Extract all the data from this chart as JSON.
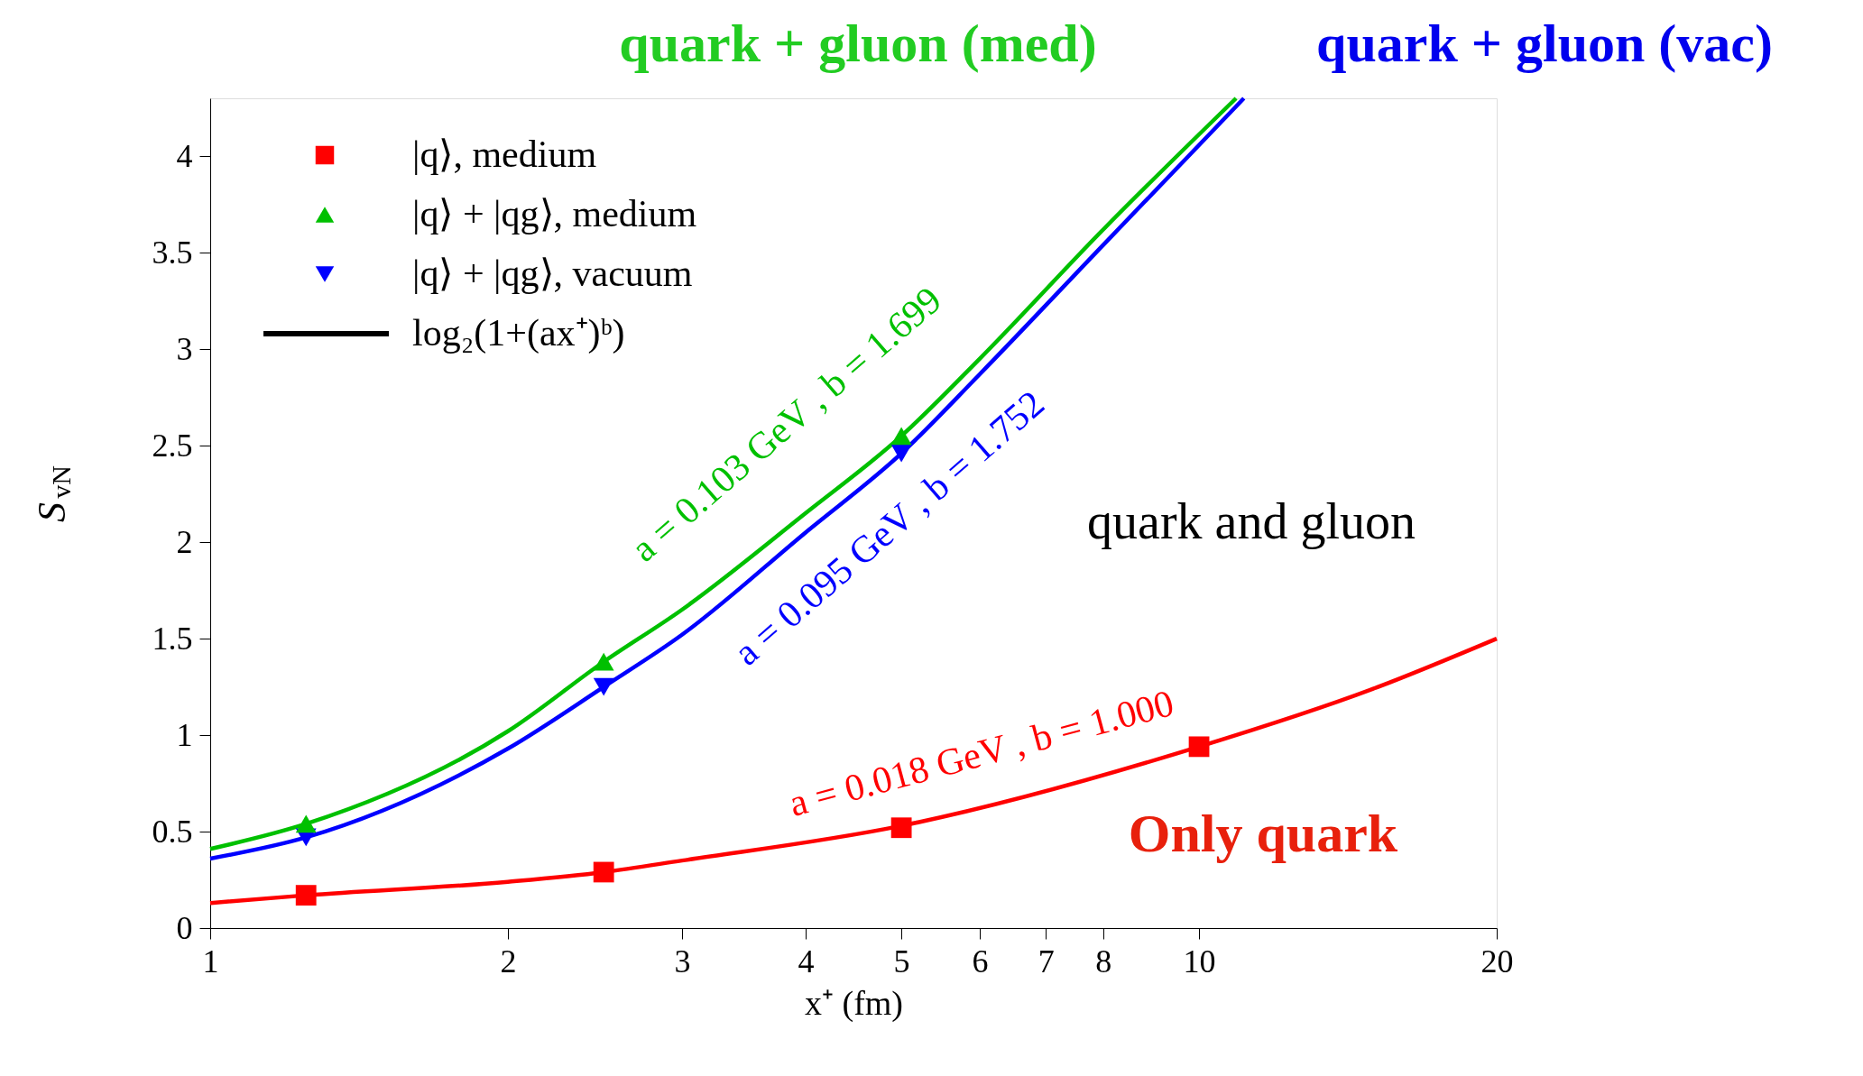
{
  "chart_data": {
    "type": "scatter",
    "xlabel": "x⁺ (fm)",
    "ylabel": "S$_{vN}$",
    "log": "x",
    "xlim": [
      1,
      20
    ],
    "xticks": [
      1,
      2,
      3,
      4,
      5,
      6,
      7,
      8,
      10,
      20
    ],
    "ylim": [
      0,
      4.3
    ],
    "yticks": [
      0,
      0.5,
      1,
      1.5,
      2,
      2.5,
      3,
      3.5,
      4
    ],
    "grid": false,
    "legend": "top left",
    "series": [
      {
        "name": "|q⟩, medium",
        "marker": "square",
        "color": "#ff0000",
        "x": [
          1.25,
          2.5,
          5,
          10
        ],
        "values": [
          0.17,
          0.29,
          0.52,
          0.94
        ]
      },
      {
        "name": "|q⟩ + |qg⟩, medium",
        "marker": "triangle",
        "color": "#00c000",
        "x": [
          1.25,
          2.5,
          5
        ],
        "values": [
          0.54,
          1.38,
          2.55
        ]
      },
      {
        "name": "|q⟩ + |qg⟩, vacuum",
        "marker": "triangle-down",
        "color": "#0000ff",
        "x": [
          1.25,
          2.5,
          5
        ],
        "values": [
          0.47,
          1.25,
          2.46
        ]
      },
      {
        "name": "log₂(1+(ax⁺)ᵇ)",
        "type": "line",
        "line_style": "solid",
        "color": "#000000"
      },
      {
        "type": "line",
        "line_style": "solid",
        "color": "#ff0000",
        "x": [
          1,
          1.25,
          2,
          2.5,
          3,
          5,
          10,
          15,
          20
        ],
        "values": [
          0.13,
          0.17,
          0.24,
          0.29,
          0.35,
          0.53,
          0.94,
          1.24,
          1.5
        ]
      },
      {
        "type": "line",
        "line_style": "solid",
        "color": "#00c000",
        "x": [
          1,
          1.25,
          2,
          2.5,
          3,
          4,
          5,
          6,
          8,
          10.9
        ],
        "values": [
          0.41,
          0.54,
          1.02,
          1.38,
          1.65,
          2.15,
          2.55,
          2.95,
          3.62,
          4.3
        ]
      },
      {
        "type": "line",
        "line_style": "solid",
        "color": "#0000ff",
        "x": [
          1,
          1.25,
          2,
          2.5,
          3,
          4,
          5,
          6,
          8,
          11.1
        ],
        "values": [
          0.36,
          0.47,
          0.93,
          1.25,
          1.52,
          2.05,
          2.46,
          2.87,
          3.54,
          4.3
        ]
      }
    ],
    "annotations": [
      "a = 0.103 GeV , b = 1.699",
      "a = 0.095 GeV , b = 1.752",
      "a = 0.018 GeV , b = 1.000",
      "quark and gluon",
      "Only quark",
      "quark + gluon (med)",
      "quark + gluon (vac)"
    ]
  }
}
